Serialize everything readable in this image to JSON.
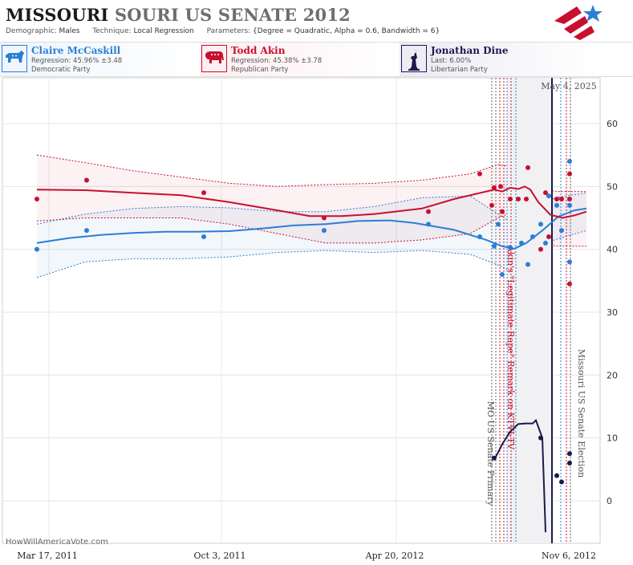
{
  "header": {
    "title_main": "MISSOURI",
    "title_sub": "SOURI US SENATE 2012",
    "demographic_label": "Demographic:",
    "demographic": "Males",
    "technique_label": "Technique:",
    "technique": "Local Regression",
    "parameters_label": "Parameters:",
    "parameters": "{Degree = Quadratic, Alpha = 0.6, Bandwidth = 6}"
  },
  "candidates": [
    {
      "name": "Claire McCaskill",
      "line1": "Regression: 45.96% ±3.48",
      "line2": "Democratic Party",
      "color": "#2a7fd4",
      "icon": "donkey-icon"
    },
    {
      "name": "Todd Akin",
      "line1": "Regression: 45.38% ±3.78",
      "line2": "Republican Party",
      "color": "#c8102e",
      "icon": "elephant-icon"
    },
    {
      "name": "Jonathan Dine",
      "line1": "Last: 6.00%",
      "line2": "Libertarian Party",
      "color": "#1a1a4e",
      "icon": "statue-of-liberty-icon"
    }
  ],
  "credit": "HowWillAmericaVote.com",
  "chart_data": {
    "type": "line",
    "y_ticks": [
      0,
      10,
      20,
      30,
      40,
      50,
      60
    ],
    "ylim": [
      -7,
      64
    ],
    "x_ticks": [
      "Mar 17, 2011",
      "Oct 3, 2011",
      "Apr 20, 2012",
      "Nov 6, 2012"
    ],
    "current_date_label": "May 4, 2025",
    "events": [
      {
        "label": "MO US Senate Primary",
        "color": "#555555"
      },
      {
        "label": "Akin's \"Legitimate Rape\" Remark on KTVI-TV",
        "color": "#c8102e"
      },
      {
        "label": "Missouri US Senate Election",
        "color": "#555555"
      }
    ],
    "series": [
      {
        "name": "Claire McCaskill",
        "color": "#2a7fd4",
        "trend": [
          [
            0,
            41
          ],
          [
            40,
            41.8
          ],
          [
            80,
            42.3
          ],
          [
            120,
            42.6
          ],
          [
            160,
            42.8
          ],
          [
            200,
            42.8
          ],
          [
            240,
            42.9
          ],
          [
            280,
            43.3
          ],
          [
            320,
            43.8
          ],
          [
            360,
            44
          ],
          [
            400,
            44.5
          ],
          [
            440,
            44.6
          ],
          [
            470,
            44.2
          ],
          [
            520,
            43.1
          ],
          [
            560,
            41.5
          ],
          [
            580,
            40.5
          ],
          [
            595,
            40.1
          ],
          [
            610,
            41
          ],
          [
            630,
            43
          ],
          [
            650,
            45.2
          ],
          [
            670,
            46.2
          ],
          [
            685,
            46.5
          ]
        ],
        "upper": [
          [
            0,
            44
          ],
          [
            60,
            45.6
          ],
          [
            120,
            46.5
          ],
          [
            180,
            46.8
          ],
          [
            240,
            46.6
          ],
          [
            300,
            46
          ],
          [
            360,
            46
          ],
          [
            420,
            46.8
          ],
          [
            480,
            48.2
          ],
          [
            540,
            48.5
          ],
          [
            575,
            45.6
          ],
          [
            595,
            44
          ],
          [
            615,
            44.5
          ],
          [
            645,
            48.2
          ],
          [
            685,
            49
          ]
        ],
        "lower": [
          [
            0,
            35.5
          ],
          [
            60,
            38
          ],
          [
            120,
            38.5
          ],
          [
            180,
            38.5
          ],
          [
            240,
            38.8
          ],
          [
            300,
            39.5
          ],
          [
            360,
            39.8
          ],
          [
            420,
            39.5
          ],
          [
            480,
            39.8
          ],
          [
            540,
            39.2
          ],
          [
            575,
            37.5
          ],
          [
            595,
            36.2
          ],
          [
            615,
            37.5
          ],
          [
            645,
            41.5
          ],
          [
            685,
            43
          ]
        ],
        "points": [
          [
            0,
            40
          ],
          [
            62,
            43
          ],
          [
            208,
            42
          ],
          [
            358,
            43
          ],
          [
            488,
            44
          ],
          [
            552,
            42
          ],
          [
            570,
            40.5
          ],
          [
            575,
            44
          ],
          [
            580,
            36
          ],
          [
            590,
            40.3
          ],
          [
            604,
            41
          ],
          [
            612,
            37.6
          ],
          [
            618,
            42
          ],
          [
            628,
            44
          ],
          [
            634,
            41
          ],
          [
            638,
            48.5
          ],
          [
            648,
            47
          ],
          [
            654,
            43
          ],
          [
            664,
            54
          ],
          [
            664,
            47
          ],
          [
            664,
            38
          ]
        ]
      },
      {
        "name": "Todd Akin",
        "color": "#c8102e",
        "trend": [
          [
            0,
            49.5
          ],
          [
            60,
            49.4
          ],
          [
            120,
            49
          ],
          [
            180,
            48.6
          ],
          [
            240,
            47.5
          ],
          [
            300,
            46.2
          ],
          [
            340,
            45.3
          ],
          [
            380,
            45.3
          ],
          [
            420,
            45.6
          ],
          [
            480,
            46.5
          ],
          [
            520,
            48
          ],
          [
            570,
            49.5
          ],
          [
            580,
            49.2
          ],
          [
            590,
            49.8
          ],
          [
            600,
            49.6
          ],
          [
            608,
            50
          ],
          [
            615,
            49.5
          ],
          [
            625,
            47.5
          ],
          [
            640,
            45.5
          ],
          [
            655,
            45
          ],
          [
            670,
            45.4
          ],
          [
            685,
            46
          ]
        ],
        "upper": [
          [
            0,
            55
          ],
          [
            60,
            53.8
          ],
          [
            120,
            52.5
          ],
          [
            180,
            51.5
          ],
          [
            240,
            50.5
          ],
          [
            300,
            50
          ],
          [
            360,
            50.3
          ],
          [
            420,
            50.5
          ],
          [
            480,
            51
          ],
          [
            540,
            52
          ],
          [
            575,
            53.5
          ],
          [
            595,
            53
          ],
          [
            615,
            51
          ],
          [
            645,
            49.2
          ],
          [
            685,
            49.2
          ]
        ],
        "lower": [
          [
            0,
            44.5
          ],
          [
            60,
            45
          ],
          [
            120,
            45
          ],
          [
            180,
            45
          ],
          [
            240,
            44
          ],
          [
            300,
            42.5
          ],
          [
            360,
            41
          ],
          [
            420,
            41
          ],
          [
            480,
            41.5
          ],
          [
            540,
            42.5
          ],
          [
            575,
            45
          ],
          [
            595,
            46
          ],
          [
            615,
            46
          ],
          [
            645,
            40.5
          ],
          [
            685,
            40.5
          ]
        ],
        "points": [
          [
            0,
            48
          ],
          [
            62,
            51
          ],
          [
            208,
            49
          ],
          [
            358,
            45
          ],
          [
            488,
            46
          ],
          [
            552,
            52
          ],
          [
            567,
            47
          ],
          [
            570,
            49.8
          ],
          [
            578,
            50
          ],
          [
            580,
            46
          ],
          [
            590,
            48
          ],
          [
            600,
            48
          ],
          [
            610,
            48
          ],
          [
            612,
            53
          ],
          [
            628,
            40
          ],
          [
            634,
            49
          ],
          [
            638,
            42
          ],
          [
            648,
            48
          ],
          [
            654,
            48
          ],
          [
            664,
            48
          ],
          [
            664,
            52
          ],
          [
            664,
            34.5
          ]
        ]
      },
      {
        "name": "Jonathan Dine",
        "color": "#1a1a4e",
        "trend": [
          [
            570,
            6.5
          ],
          [
            580,
            9
          ],
          [
            590,
            11
          ],
          [
            600,
            12.2
          ],
          [
            610,
            12.3
          ],
          [
            618,
            12.3
          ],
          [
            622,
            12.8
          ],
          [
            630,
            10
          ],
          [
            634,
            -5
          ]
        ],
        "points": [
          [
            570,
            6.8
          ],
          [
            628,
            10
          ],
          [
            648,
            4
          ],
          [
            654,
            3
          ],
          [
            664,
            7.5
          ],
          [
            664,
            6
          ]
        ]
      }
    ]
  }
}
